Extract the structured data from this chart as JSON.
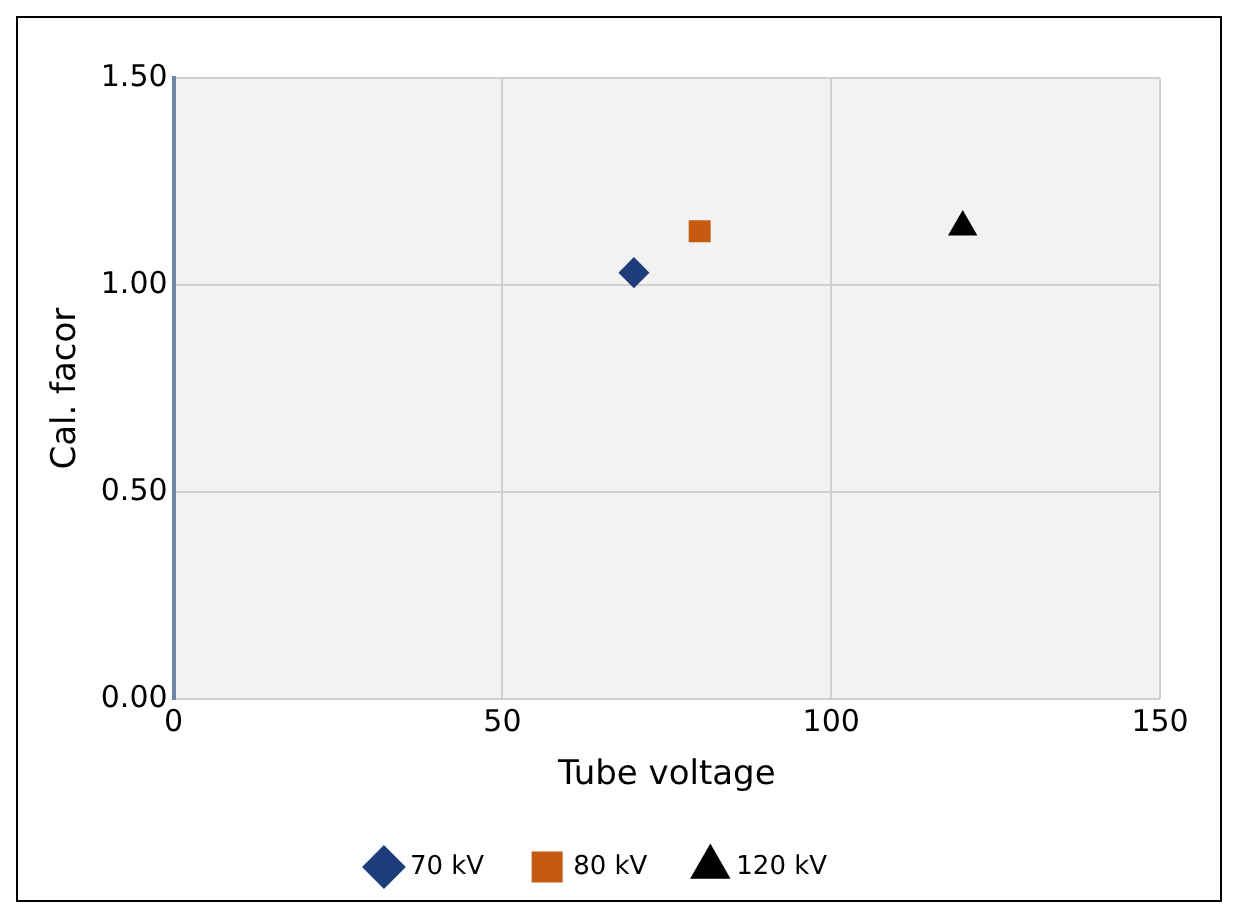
{
  "chart_data": {
    "type": "scatter",
    "xlabel": "Tube voltage",
    "ylabel": "Cal. facor",
    "xlim": [
      0,
      150
    ],
    "xticks": [
      0,
      50,
      100,
      150
    ],
    "ylim": [
      0,
      1.5
    ],
    "yticks": [
      {
        "value": 0,
        "label": "0.00"
      },
      {
        "value": 0.5,
        "label": "0.50"
      },
      {
        "value": 1,
        "label": "1.00"
      },
      {
        "value": 1.5,
        "label": "1.50"
      }
    ],
    "grid": true,
    "legend": "bottom",
    "series": [
      {
        "name": "70 kV",
        "color": "#1f3d7a",
        "marker": "diamond",
        "x": [
          70
        ],
        "values": [
          1.03
        ]
      },
      {
        "name": "80 kV",
        "color": "#c55a11",
        "marker": "square",
        "x": [
          80
        ],
        "values": [
          1.13
        ]
      },
      {
        "name": "120 kV",
        "color": "#000000",
        "marker": "triangle",
        "x": [
          120
        ],
        "values": [
          1.14
        ]
      }
    ]
  }
}
